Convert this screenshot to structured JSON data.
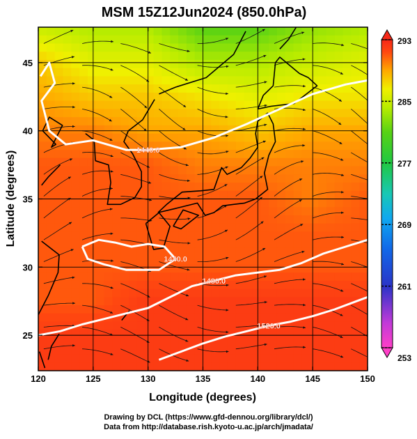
{
  "chart_data": {
    "type": "heatmap",
    "title": "MSM 15Z12Jun2024 (850.0hPa)",
    "xlabel": "Longitude (degrees)",
    "ylabel": "Latitude  (degrees)",
    "xlim": [
      120,
      150
    ],
    "ylim": [
      22.4,
      47.6
    ],
    "x_ticks": [
      120,
      125,
      130,
      135,
      140,
      145,
      150
    ],
    "y_ticks": [
      25,
      30,
      35,
      40,
      45
    ],
    "grid": true,
    "colorbar": {
      "min": 253,
      "max": 293,
      "ticks": [
        293,
        285,
        277,
        269,
        261,
        253
      ]
    },
    "field_samples": {
      "lon": [
        120,
        125,
        130,
        135,
        140,
        145,
        150
      ],
      "lat": [
        47.5,
        45,
        42.5,
        40,
        37.5,
        35,
        32.5,
        30,
        27.5,
        25,
        22.5
      ],
      "values": [
        [
          285,
          284,
          284,
          281,
          281,
          283,
          284
        ],
        [
          288,
          286,
          286,
          284,
          284,
          285,
          286
        ],
        [
          289,
          288,
          288,
          287,
          286,
          287,
          287
        ],
        [
          290,
          290,
          289,
          289,
          288,
          289,
          289
        ],
        [
          291,
          291,
          291,
          290,
          290,
          290,
          290
        ],
        [
          291,
          291,
          291,
          291,
          291,
          290,
          291
        ],
        [
          291,
          291,
          291,
          291,
          291,
          291,
          291
        ],
        [
          291,
          291,
          291,
          291,
          291,
          291,
          291
        ],
        [
          291,
          291,
          292,
          292,
          292,
          292,
          292
        ],
        [
          292,
          292,
          292,
          292,
          292,
          292,
          292
        ],
        [
          292,
          292,
          292,
          292,
          292,
          292,
          292
        ]
      ]
    },
    "contours": [
      {
        "label": "1440.0",
        "points": [
          [
            120.2,
            44
          ],
          [
            121,
            45
          ],
          [
            121.5,
            43.5
          ],
          [
            120.3,
            42.2
          ],
          [
            121,
            40
          ],
          [
            122.5,
            39
          ],
          [
            125,
            39.3
          ],
          [
            128,
            38.6
          ],
          [
            130,
            38.6
          ],
          [
            133,
            38.8
          ],
          [
            136,
            39.5
          ],
          [
            139,
            40.5
          ],
          [
            142,
            41.6
          ],
          [
            145,
            42.7
          ],
          [
            148,
            43.4
          ],
          [
            150,
            43.7
          ]
        ]
      },
      {
        "label": "1440.0",
        "points": [
          [
            124,
            31.5
          ],
          [
            125.5,
            32
          ],
          [
            127,
            31.8
          ],
          [
            128.5,
            31.5
          ],
          [
            130,
            31.7
          ],
          [
            131.5,
            31.5
          ],
          [
            132.5,
            30.6
          ],
          [
            131,
            29.8
          ],
          [
            128,
            29.8
          ],
          [
            126,
            30.2
          ],
          [
            124.5,
            30.6
          ],
          [
            124,
            31.5
          ]
        ]
      },
      {
        "label": "1480.0",
        "points": [
          [
            120,
            25
          ],
          [
            122,
            25.3
          ],
          [
            124,
            25.8
          ],
          [
            126,
            26.2
          ],
          [
            128,
            26.6
          ],
          [
            130,
            27
          ],
          [
            132,
            27.8
          ],
          [
            134,
            28.6
          ],
          [
            136,
            29
          ],
          [
            138,
            29.4
          ],
          [
            140,
            29.6
          ],
          [
            142,
            29.8
          ],
          [
            144,
            30.3
          ],
          [
            146,
            31
          ],
          [
            148,
            31.5
          ],
          [
            150,
            32
          ]
        ]
      },
      {
        "label": "1520.0",
        "points": [
          [
            131,
            23.2
          ],
          [
            133,
            23.8
          ],
          [
            135,
            24.4
          ],
          [
            137,
            24.9
          ],
          [
            139,
            25.3
          ],
          [
            141,
            25.7
          ],
          [
            143,
            26
          ],
          [
            145,
            26.4
          ],
          [
            147,
            26.9
          ],
          [
            149,
            27.5
          ],
          [
            150,
            27.8
          ]
        ]
      }
    ]
  },
  "credits": {
    "line1": "Drawing by DCL (https://www.gfd-dennou.org/library/dcl/)",
    "line2": "Data from http://database.rish.kyoto-u.ac.jp/arch/jmadata/"
  }
}
